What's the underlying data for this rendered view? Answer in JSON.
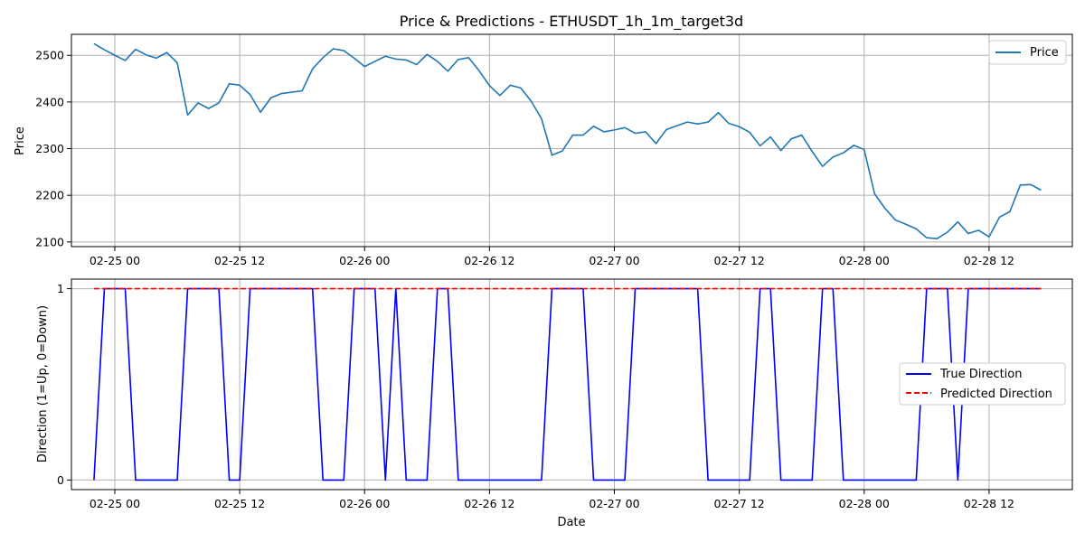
{
  "chart_data": [
    {
      "type": "line",
      "title": "Price & Predictions - ETHUSDT_1h_1m_target3d",
      "xlabel": "",
      "ylabel": "Price",
      "x_start": "2025-02-24 22:00",
      "x_step_hours": 1,
      "xlim": [
        "2025-02-24 19:50",
        "2025-02-28 20:00"
      ],
      "ylim": [
        2090,
        2545
      ],
      "yticks": [
        2100,
        2200,
        2300,
        2400,
        2500
      ],
      "xticks": [
        "02-25 00",
        "02-25 12",
        "02-26 00",
        "02-26 12",
        "02-27 00",
        "02-27 12",
        "02-28 00",
        "02-28 12"
      ],
      "grid": true,
      "legend_position": "top-right",
      "series": [
        {
          "name": "Price",
          "color": "#1f77b4",
          "values": [
            2525,
            2512,
            2500,
            2489,
            2513,
            2501,
            2494,
            2506,
            2484,
            2372,
            2398,
            2386,
            2398,
            2439,
            2436,
            2416,
            2378,
            2409,
            2418,
            2421,
            2424,
            2471,
            2495,
            2514,
            2510,
            2494,
            2476,
            2487,
            2498,
            2492,
            2490,
            2480,
            2502,
            2487,
            2466,
            2491,
            2495,
            2467,
            2435,
            2414,
            2436,
            2430,
            2402,
            2364,
            2286,
            2295,
            2329,
            2329,
            2348,
            2336,
            2340,
            2345,
            2333,
            2336,
            2311,
            2341,
            2349,
            2357,
            2353,
            2357,
            2377,
            2354,
            2347,
            2335,
            2306,
            2325,
            2296,
            2321,
            2329,
            2294,
            2262,
            2282,
            2291,
            2307,
            2298,
            2203,
            2172,
            2147,
            2138,
            2128,
            2109,
            2107,
            2121,
            2143,
            2118,
            2125,
            2111,
            2153,
            2165,
            2222,
            2223,
            2211
          ]
        }
      ]
    },
    {
      "type": "line",
      "title": "",
      "xlabel": "Date",
      "ylabel": "Direction (1=Up, 0=Down)",
      "x_start": "2025-02-24 22:00",
      "x_step_hours": 1,
      "ylim": [
        -0.05,
        1.05
      ],
      "yticks": [
        0,
        1
      ],
      "xticks": [
        "02-25 00",
        "02-25 12",
        "02-26 00",
        "02-26 12",
        "02-27 00",
        "02-27 12",
        "02-28 00",
        "02-28 12"
      ],
      "grid": true,
      "legend_position": "center-right",
      "series": [
        {
          "name": "True Direction",
          "color": "#0000ff",
          "style": "solid",
          "values": [
            0,
            1,
            1,
            1,
            0,
            0,
            0,
            0,
            0,
            1,
            1,
            1,
            1,
            0,
            0,
            1,
            1,
            1,
            1,
            1,
            1,
            1,
            0,
            0,
            0,
            1,
            1,
            1,
            0,
            1,
            0,
            0,
            0,
            1,
            1,
            0,
            0,
            0,
            0,
            0,
            0,
            0,
            0,
            0,
            1,
            1,
            1,
            1,
            0,
            0,
            0,
            0,
            1,
            1,
            1,
            1,
            1,
            1,
            1,
            0,
            0,
            0,
            0,
            0,
            1,
            1,
            0,
            0,
            0,
            0,
            1,
            1,
            0,
            0,
            0,
            0,
            0,
            0,
            0,
            0,
            1,
            1,
            1,
            0,
            1,
            1,
            1,
            1,
            1,
            1,
            1,
            1
          ]
        },
        {
          "name": "Predicted Direction",
          "color": "#ff0000",
          "style": "dashed",
          "values": [
            1,
            1,
            1,
            1,
            1,
            1,
            1,
            1,
            1,
            1,
            1,
            1,
            1,
            1,
            1,
            1,
            1,
            1,
            1,
            1,
            1,
            1,
            1,
            1,
            1,
            1,
            1,
            1,
            1,
            1,
            1,
            1,
            1,
            1,
            1,
            1,
            1,
            1,
            1,
            1,
            1,
            1,
            1,
            1,
            1,
            1,
            1,
            1,
            1,
            1,
            1,
            1,
            1,
            1,
            1,
            1,
            1,
            1,
            1,
            1,
            1,
            1,
            1,
            1,
            1,
            1,
            1,
            1,
            1,
            1,
            1,
            1,
            1,
            1,
            1,
            1,
            1,
            1,
            1,
            1,
            1,
            1,
            1,
            1,
            1,
            1,
            1,
            1,
            1,
            1,
            1,
            1
          ]
        }
      ]
    }
  ]
}
